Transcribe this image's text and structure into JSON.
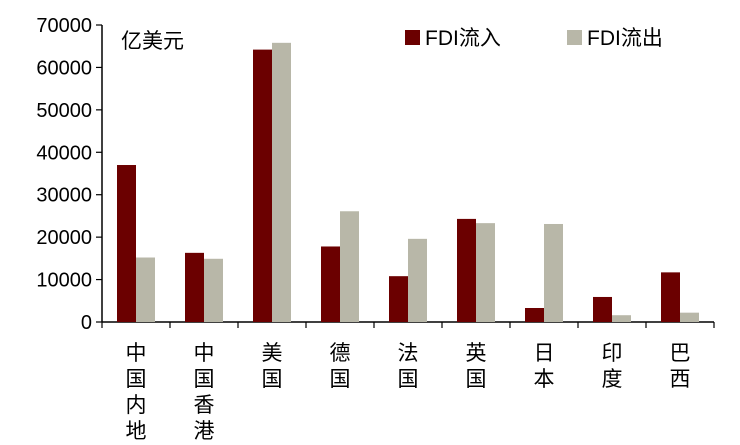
{
  "chart_data": {
    "type": "bar",
    "unit": "亿美元",
    "categories": [
      "中国内地",
      "中国香港",
      "美国",
      "德国",
      "法国",
      "英国",
      "日本",
      "印度",
      "巴西"
    ],
    "series": [
      {
        "name": "FDI流入",
        "color": "#6b0000",
        "values": [
          37000,
          16300,
          64200,
          17800,
          10800,
          24300,
          3300,
          5900,
          11700
        ]
      },
      {
        "name": "FDI流出",
        "color": "#b8b7a8",
        "values": [
          15200,
          14900,
          65800,
          26100,
          19600,
          23300,
          23100,
          1600,
          2200
        ]
      }
    ],
    "ylim": [
      0,
      70000
    ],
    "yticks": [
      0,
      10000,
      20000,
      30000,
      40000,
      50000,
      60000,
      70000
    ],
    "grid": false,
    "legend": "top-right"
  }
}
